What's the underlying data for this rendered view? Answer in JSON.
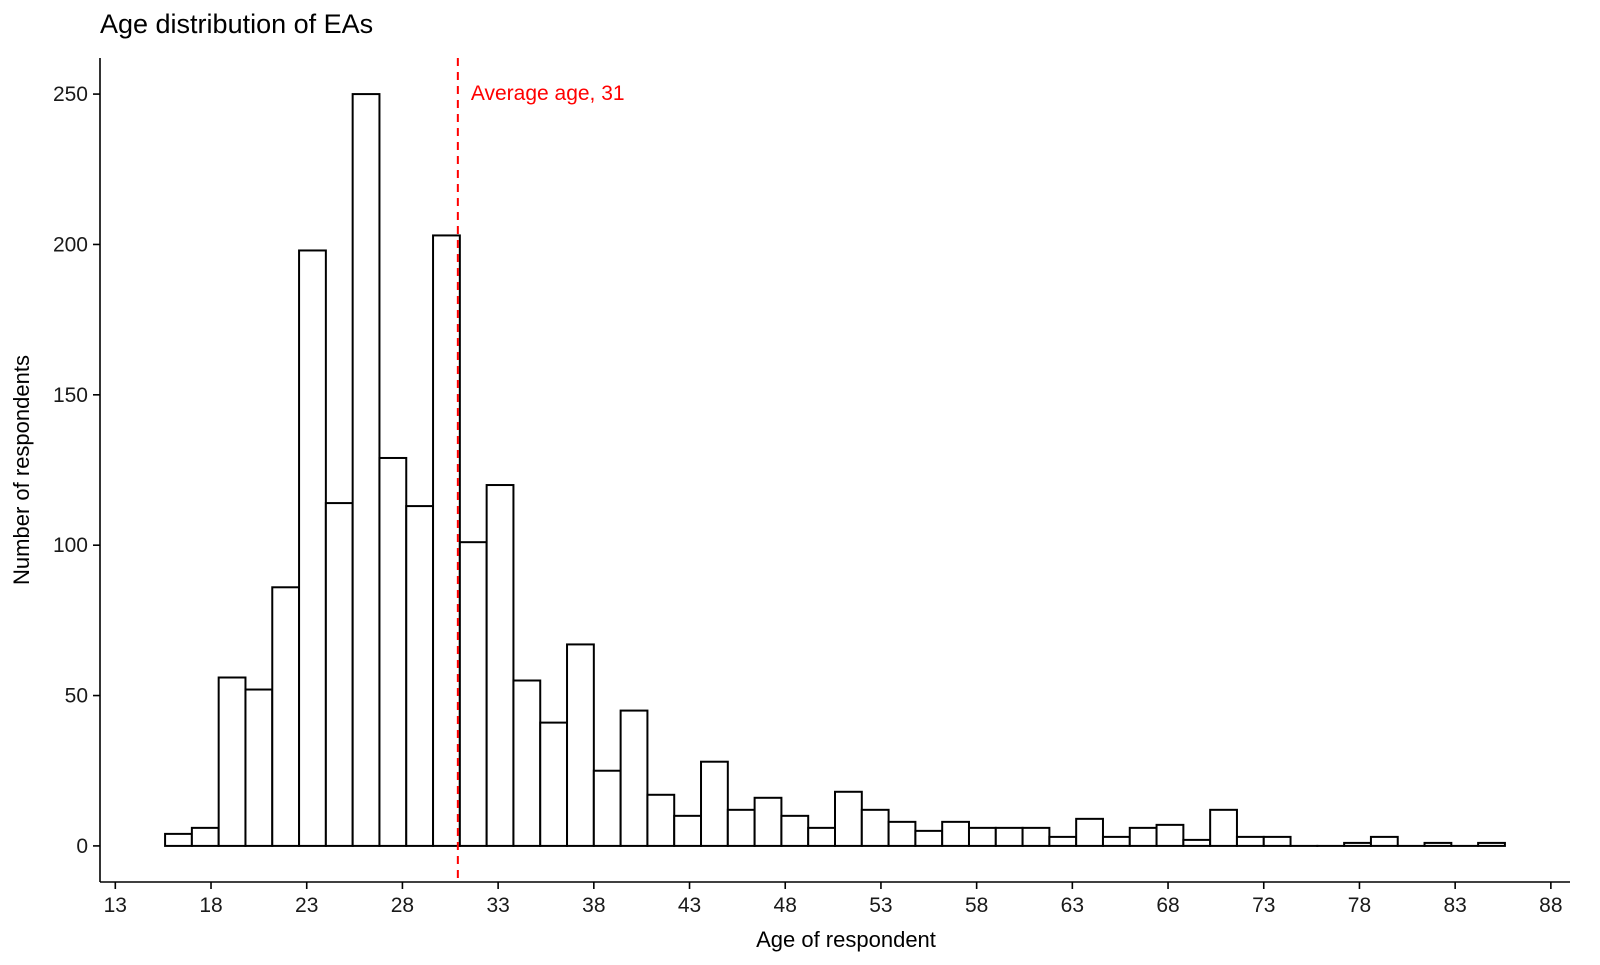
{
  "chart_data": {
    "type": "bar",
    "title": "Age distribution of EAs",
    "xlabel": "Age of respondent",
    "ylabel": "Number of respondents",
    "xlim": [
      12.2,
      89
    ],
    "ylim": [
      -12,
      262
    ],
    "x_ticks": [
      13,
      18,
      23,
      28,
      33,
      38,
      43,
      48,
      53,
      58,
      63,
      68,
      73,
      78,
      83,
      88
    ],
    "y_ticks": [
      0,
      50,
      100,
      150,
      200,
      250
    ],
    "bin_width": 1.4,
    "bin_start": 15.6,
    "values": [
      4,
      6,
      56,
      52,
      86,
      198,
      114,
      250,
      129,
      113,
      203,
      101,
      120,
      55,
      41,
      67,
      25,
      45,
      17,
      10,
      28,
      12,
      16,
      10,
      6,
      18,
      12,
      8,
      5,
      8,
      6,
      6,
      6,
      3,
      9,
      3,
      6,
      7,
      2,
      12,
      3,
      3,
      0,
      0,
      1,
      3,
      0,
      1,
      0,
      1
    ],
    "grid": false,
    "reference_line": {
      "x": 31,
      "label": "Average age, 31",
      "color": "#ff0000",
      "style": "dashed"
    }
  }
}
